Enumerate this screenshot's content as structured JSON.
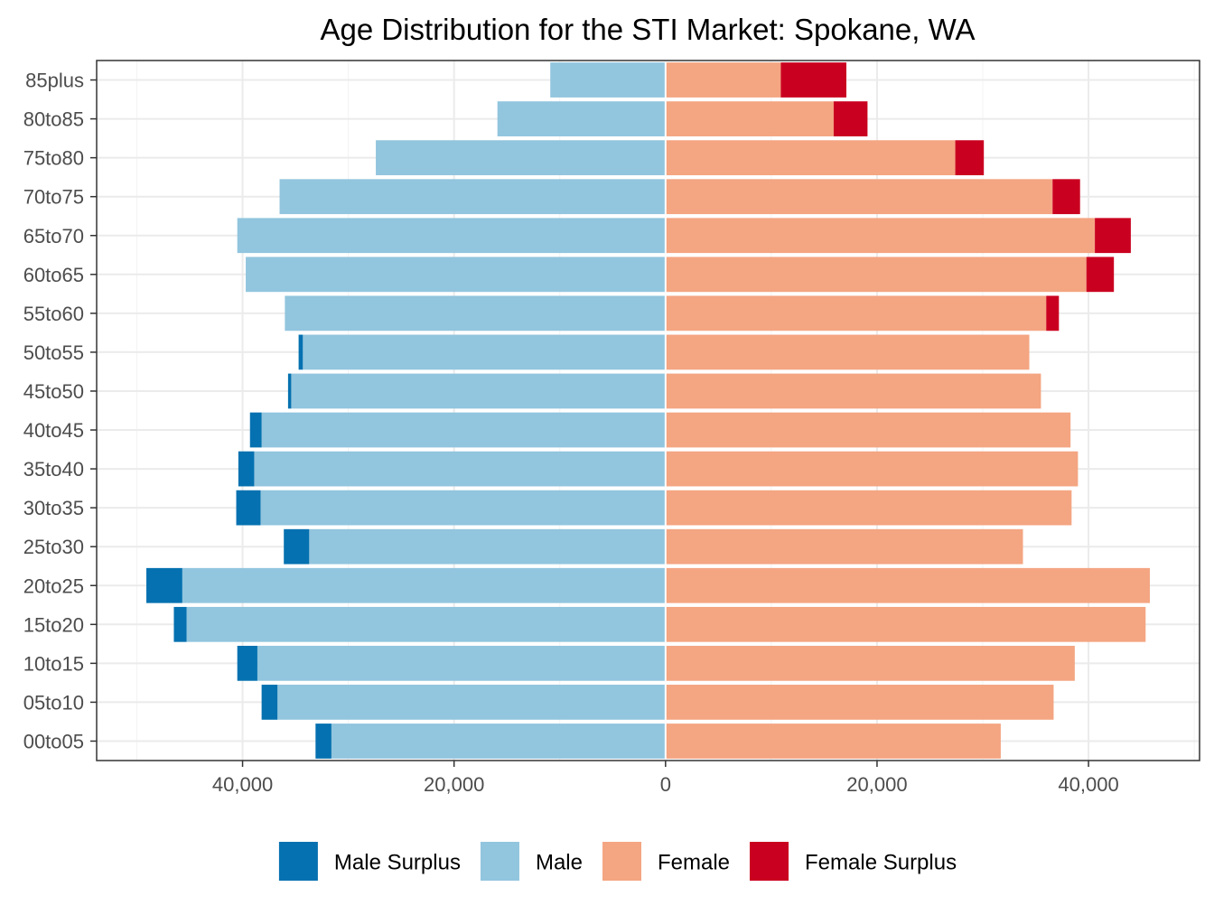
{
  "chart_data": {
    "type": "bar",
    "orientation": "horizontal",
    "title": "Age Distribution for the STI Market: Spokane, WA",
    "xlabel": "",
    "ylabel": "",
    "categories": [
      "00to05",
      "05to10",
      "10to15",
      "15to20",
      "20to25",
      "25to30",
      "30to35",
      "35to40",
      "40to45",
      "45to50",
      "50to55",
      "55to60",
      "60to65",
      "65to70",
      "70to75",
      "75to80",
      "80to85",
      "85plus"
    ],
    "x_tick_values": [
      -40000,
      -20000,
      0,
      20000,
      40000
    ],
    "x_tick_labels": [
      "40,000",
      "20,000",
      "0",
      "20,000",
      "40,000"
    ],
    "xlim": [
      -53800,
      50500
    ],
    "grid": true,
    "legend_position": "bottom",
    "series": [
      {
        "name": "Male Surplus",
        "color": "#0571b0",
        "side": "left",
        "stack": "outer",
        "values": [
          1500,
          1500,
          1900,
          1200,
          3400,
          2400,
          2300,
          1500,
          1100,
          300,
          400,
          0,
          0,
          0,
          0,
          0,
          0,
          0
        ]
      },
      {
        "name": "Male",
        "color": "#92c5de",
        "side": "left",
        "stack": "inner",
        "values": [
          31600,
          36700,
          38600,
          45300,
          45700,
          33700,
          38300,
          38900,
          38200,
          35400,
          34300,
          36000,
          39700,
          40500,
          36500,
          27400,
          15900,
          10900
        ]
      },
      {
        "name": "Female",
        "color": "#f4a582",
        "side": "right",
        "stack": "inner",
        "values": [
          31700,
          36700,
          38700,
          45400,
          45800,
          33800,
          38400,
          39000,
          38300,
          35500,
          34400,
          36000,
          39800,
          40600,
          36600,
          27400,
          15900,
          10900
        ]
      },
      {
        "name": "Female Surplus",
        "color": "#ca0020",
        "side": "right",
        "stack": "outer",
        "values": [
          0,
          0,
          0,
          0,
          0,
          0,
          0,
          0,
          0,
          0,
          0,
          1200,
          2600,
          3400,
          2600,
          2700,
          3200,
          6200
        ]
      }
    ]
  }
}
